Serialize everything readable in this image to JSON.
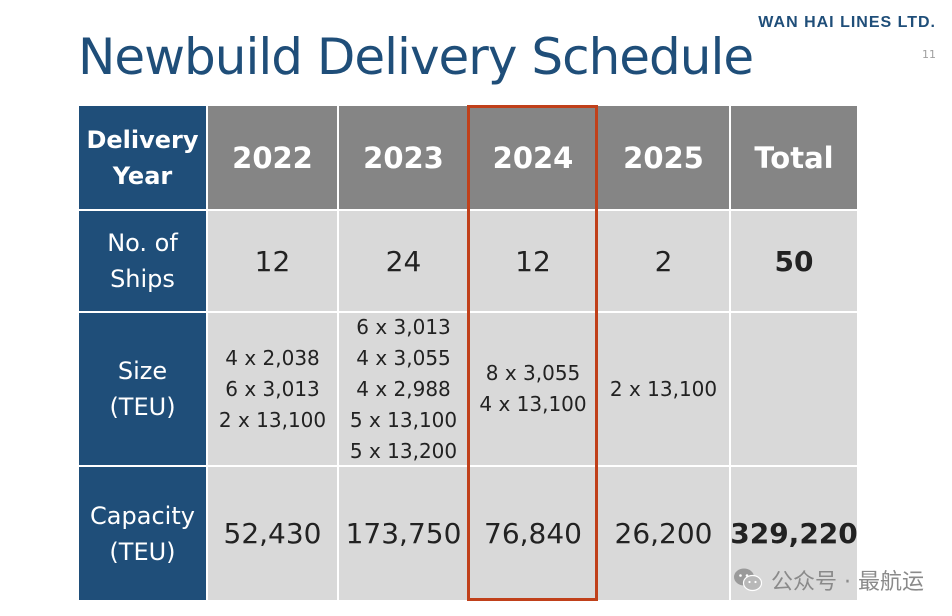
{
  "header": {
    "title": "Newbuild Delivery Schedule",
    "brand": "WAN HAI LINES LTD.",
    "page_number": "11"
  },
  "table": {
    "corner_label": [
      "Delivery",
      "Year"
    ],
    "columns": [
      "2022",
      "2023",
      "2024",
      "2025",
      "Total"
    ],
    "highlighted_column": "2024",
    "rows": [
      {
        "label": [
          "No. of",
          "Ships"
        ],
        "values": [
          [
            "12"
          ],
          [
            "24"
          ],
          [
            "12"
          ],
          [
            "2"
          ],
          [
            "50"
          ]
        ]
      },
      {
        "label": [
          "Size",
          "(TEU)"
        ],
        "values": [
          [
            "4 x 2,038",
            "6 x 3,013",
            "2 x 13,100"
          ],
          [
            "6 x 3,013",
            "4 x 3,055",
            "4 x 2,988",
            "5 x 13,100",
            "5 x 13,200"
          ],
          [
            "8 x 3,055",
            "4 x 13,100"
          ],
          [
            "2 x 13,100"
          ],
          []
        ]
      },
      {
        "label": [
          "Capacity",
          "(TEU)"
        ],
        "values": [
          [
            "52,430"
          ],
          [
            "173,750"
          ],
          [
            "76,840"
          ],
          [
            "26,200"
          ],
          [
            "329,220"
          ]
        ]
      }
    ]
  },
  "watermark": {
    "text": "公众号 · 最航运",
    "icon": "wechat-icon"
  },
  "colors": {
    "navy": "#1f4e79",
    "gray_header": "#858585",
    "cell_bg": "#d9d9d9",
    "highlight_border": "#c0401a"
  }
}
